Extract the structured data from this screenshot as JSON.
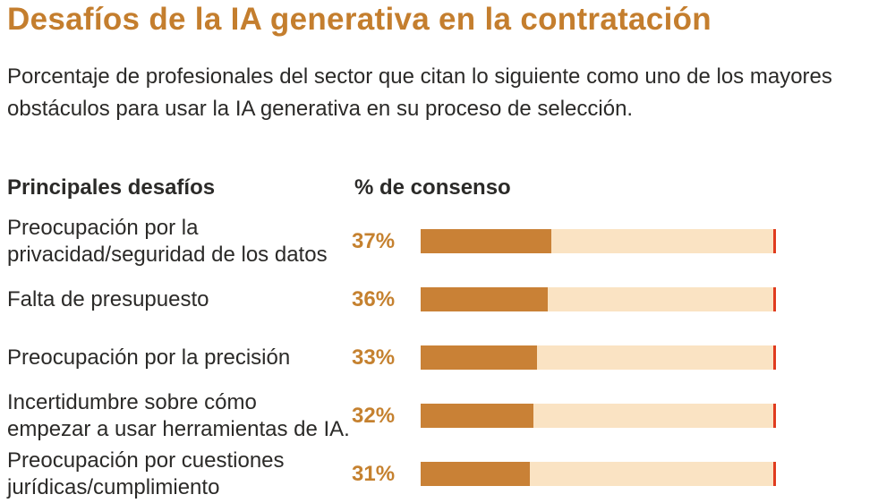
{
  "title": "Desafíos de la IA generativa en la contratación",
  "subtitle": "Porcentaje de profesionales del sector que citan lo siguiente como uno de los mayores obstáculos para usar la IA generativa en su proceso de selección.",
  "table": {
    "challenges_header": "Principales desafíos",
    "consensus_header": "% de consenso"
  },
  "colors": {
    "title_orange": "#C47E2E",
    "value_orange": "#C5812F",
    "bar_fill": "#C98136",
    "bar_track": "#FAE3C3",
    "bar_end_marker": "#E03B1E",
    "text_dark": "#2B2A28",
    "background": "#FFFFFF"
  },
  "chart_data": {
    "type": "bar",
    "orientation": "horizontal",
    "title": "Desafíos de la IA generativa en la contratación",
    "subtitle": "Porcentaje de profesionales del sector que citan lo siguiente como uno de los mayores obstáculos para usar la IA generativa en su proceso de selección.",
    "xlabel": "% de consenso",
    "ylabel": "Principales desafíos",
    "xlim": [
      0,
      100
    ],
    "grid": false,
    "legend": false,
    "categories": [
      "Preocupación por la privacidad/seguridad de los datos",
      "Falta de presupuesto",
      "Preocupación por la precisión",
      "Incertidumbre sobre cómo empezar a usar herramientas de IA.",
      "Preocupación por cuestiones jurídicas/cumplimiento"
    ],
    "values": [
      37,
      36,
      33,
      32,
      31
    ],
    "value_labels": [
      "37%",
      "36%",
      "33%",
      "32%",
      "31%"
    ]
  },
  "rows": [
    {
      "label": "Preocupación por la\nprivacidad/seguridad de los datos",
      "value_label": "37%",
      "pct": 37
    },
    {
      "label": "Falta de presupuesto",
      "value_label": "36%",
      "pct": 36
    },
    {
      "label": "Preocupación por la precisión",
      "value_label": "33%",
      "pct": 33
    },
    {
      "label": "Incertidumbre sobre cómo\nempezar a usar herramientas de IA.",
      "value_label": "32%",
      "pct": 32
    },
    {
      "label": "Preocupación por cuestiones\njurídicas/cumplimiento",
      "value_label": "31%",
      "pct": 31
    }
  ]
}
